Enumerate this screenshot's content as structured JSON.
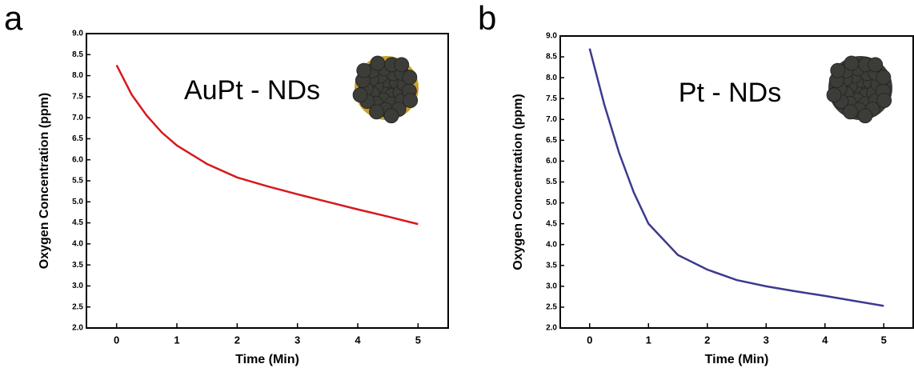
{
  "chart_data": [
    {
      "type": "line",
      "panel_label": "a",
      "annotation": "AuPt - NDs",
      "x_label": "Time (Min)",
      "y_label": "Oxygen Concentration (ppm)",
      "x": [
        0,
        0.25,
        0.5,
        0.75,
        1,
        1.5,
        2,
        2.5,
        3,
        3.5,
        4,
        4.5,
        5
      ],
      "series": [
        {
          "color": "#d7191c",
          "values": [
            8.25,
            7.55,
            7.05,
            6.65,
            6.34,
            5.9,
            5.58,
            5.37,
            5.18,
            5.0,
            4.82,
            4.65,
            4.47
          ]
        }
      ],
      "xlim": [
        -0.5,
        5.5
      ],
      "xticks": [
        0,
        1,
        2,
        3,
        4,
        5
      ],
      "ylim": [
        2,
        9
      ],
      "yticks": [
        {
          "value": 2,
          "label": "2.0"
        },
        {
          "value": 2.5,
          "label": "2.5"
        },
        {
          "value": 3,
          "label": "3.0"
        },
        {
          "value": 3.5,
          "label": "3.5"
        },
        {
          "value": 4,
          "label": "4.0"
        },
        {
          "value": 4.5,
          "label": "4.5"
        },
        {
          "value": 5,
          "label": "5.0"
        },
        {
          "value": 5.5,
          "label": "5.5"
        },
        {
          "value": 6,
          "label": "6.0"
        },
        {
          "value": 6.5,
          "label": "6.5"
        },
        {
          "value": 7,
          "label": "7.0"
        },
        {
          "value": 7.5,
          "label": "7.5"
        },
        {
          "value": 8,
          "label": "8.0"
        },
        {
          "value": 8.5,
          "label": "8.5"
        },
        {
          "value": 9,
          "label": "9.0"
        }
      ]
    },
    {
      "type": "line",
      "panel_label": "b",
      "annotation": "Pt - NDs",
      "x_label": "Time (Min)",
      "y_label": "Oxygen Concentration (ppm)",
      "x": [
        0,
        0.25,
        0.5,
        0.75,
        1,
        1.5,
        2,
        2.5,
        3,
        3.5,
        4,
        4.5,
        5
      ],
      "series": [
        {
          "color": "#3b3a8f",
          "values": [
            8.7,
            7.35,
            6.2,
            5.25,
            4.5,
            3.75,
            3.4,
            3.15,
            3.0,
            2.88,
            2.77,
            2.65,
            2.53
          ]
        }
      ],
      "xlim": [
        -0.5,
        5.5
      ],
      "xticks": [
        0,
        1,
        2,
        3,
        4,
        5
      ],
      "ylim": [
        2,
        9
      ],
      "yticks": [
        {
          "value": 2,
          "label": "2.0"
        },
        {
          "value": 2.5,
          "label": "2.5"
        },
        {
          "value": 3,
          "label": "3.0"
        },
        {
          "value": 3.5,
          "label": "3.5"
        },
        {
          "value": 4,
          "label": "4.0"
        },
        {
          "value": 4.5,
          "label": "4.5"
        },
        {
          "value": 5,
          "label": "5.0"
        },
        {
          "value": 5.5,
          "label": "5.5"
        },
        {
          "value": 6,
          "label": "6.0"
        },
        {
          "value": 6.5,
          "label": "6.5"
        },
        {
          "value": 7,
          "label": "7.0"
        },
        {
          "value": 7.5,
          "label": "7.5"
        },
        {
          "value": 8,
          "label": "8.0"
        },
        {
          "value": 8.5,
          "label": "8.5"
        },
        {
          "value": 9,
          "label": "9.0"
        }
      ]
    }
  ]
}
